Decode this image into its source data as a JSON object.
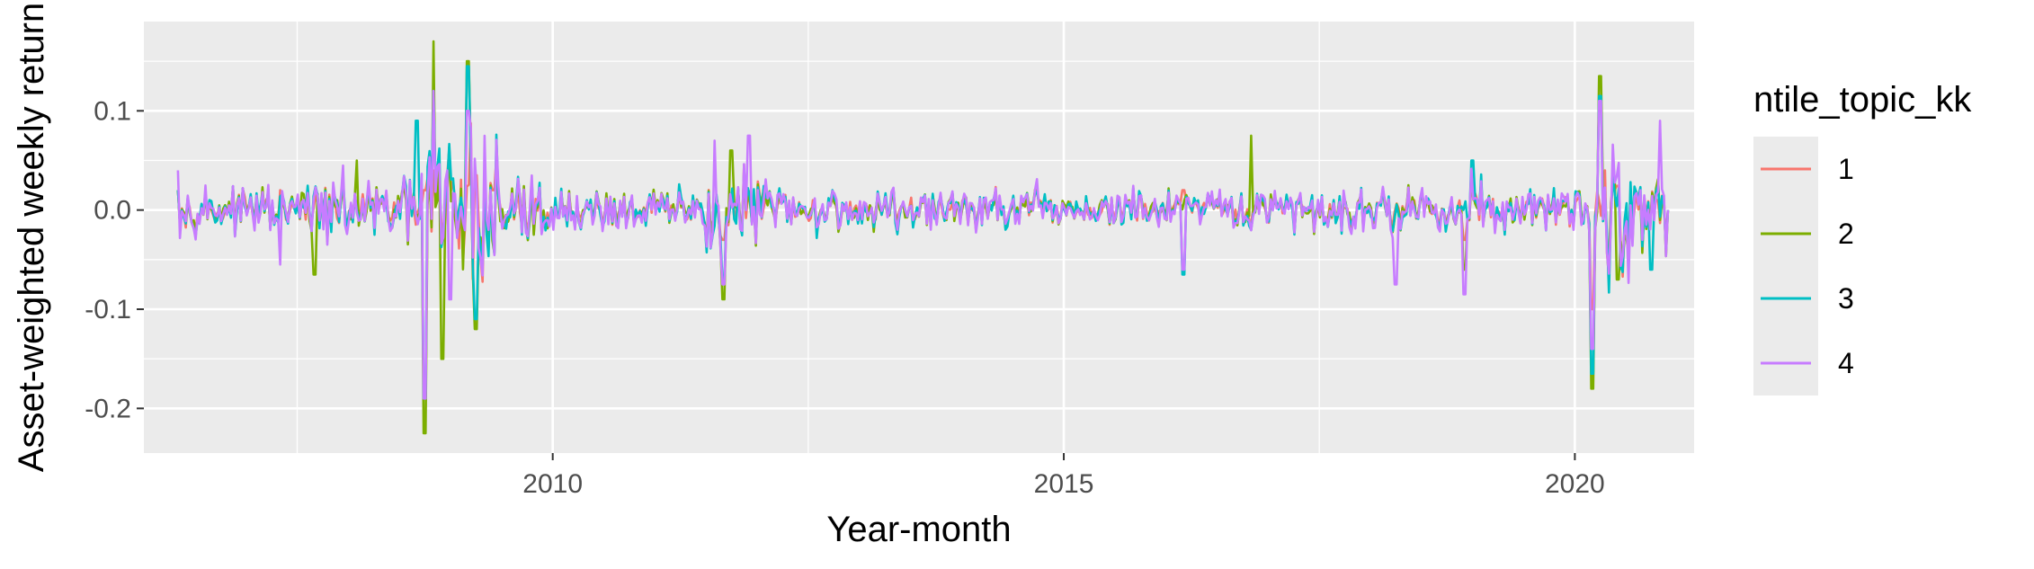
{
  "chart_data": {
    "type": "line",
    "title": "",
    "xlabel": "Year-month",
    "ylabel": "Asset-weighted weekly return",
    "xlim": [
      "2006-01",
      "2021-03"
    ],
    "ylim": [
      -0.245,
      0.19
    ],
    "x_ticks": [
      "2010",
      "2015",
      "2020"
    ],
    "y_ticks": [
      "0.1",
      "0.0",
      "-0.1",
      "-0.2"
    ],
    "grid": true,
    "panel_background": "#ebebeb",
    "legend": {
      "title": "ntile_topic_kk",
      "placement": "right"
    },
    "x_start": "2006-05",
    "x_end": "2020-12",
    "series": [
      {
        "name": "1",
        "color": "#F8766D",
        "key_points": [
          [
            "2006-05",
            0.02
          ],
          [
            "2008-10",
            0.02
          ],
          [
            "2009-06",
            0.02
          ],
          [
            "2011-09",
            -0.03
          ],
          [
            "2016-03",
            0.02
          ],
          [
            "2018-12",
            -0.03
          ],
          [
            "2020-03",
            -0.1
          ],
          [
            "2020-12",
            0.0
          ]
        ]
      },
      {
        "name": "2",
        "color": "#7CAE00",
        "key_points": [
          [
            "2006-05",
            0.02
          ],
          [
            "2007-09",
            -0.065
          ],
          [
            "2008-02",
            0.05
          ],
          [
            "2008-10",
            -0.225
          ],
          [
            "2008-11",
            0.17
          ],
          [
            "2008-12",
            -0.15
          ],
          [
            "2009-03",
            0.15
          ],
          [
            "2009-04",
            -0.12
          ],
          [
            "2011-09",
            -0.09
          ],
          [
            "2011-10",
            0.06
          ],
          [
            "2016-11",
            0.075
          ],
          [
            "2018-12",
            -0.06
          ],
          [
            "2020-03",
            -0.18
          ],
          [
            "2020-04",
            0.135
          ],
          [
            "2020-06",
            -0.07
          ],
          [
            "2020-12",
            0.0
          ]
        ]
      },
      {
        "name": "3",
        "color": "#00BFC4",
        "key_points": [
          [
            "2006-05",
            0.02
          ],
          [
            "2008-09",
            0.09
          ],
          [
            "2008-10",
            -0.19
          ],
          [
            "2008-11",
            0.12
          ],
          [
            "2009-03",
            0.145
          ],
          [
            "2009-04",
            -0.11
          ],
          [
            "2011-09",
            -0.07
          ],
          [
            "2016-03",
            -0.065
          ],
          [
            "2019-01",
            0.05
          ],
          [
            "2020-03",
            -0.165
          ],
          [
            "2020-04",
            0.115
          ],
          [
            "2020-10",
            -0.06
          ],
          [
            "2020-12",
            0.0
          ]
        ]
      },
      {
        "name": "4",
        "color": "#C77CFF",
        "key_points": [
          [
            "2006-05",
            0.04
          ],
          [
            "2007-05",
            -0.055
          ],
          [
            "2008-10",
            -0.19
          ],
          [
            "2008-11",
            0.12
          ],
          [
            "2009-01",
            -0.09
          ],
          [
            "2009-03",
            0.1
          ],
          [
            "2011-08",
            0.07
          ],
          [
            "2011-09",
            -0.075
          ],
          [
            "2011-12",
            0.075
          ],
          [
            "2016-03",
            -0.06
          ],
          [
            "2018-04",
            -0.075
          ],
          [
            "2018-12",
            -0.085
          ],
          [
            "2020-03",
            -0.14
          ],
          [
            "2020-04",
            0.11
          ],
          [
            "2020-11",
            0.09
          ],
          [
            "2020-12",
            0.0
          ]
        ]
      }
    ]
  }
}
